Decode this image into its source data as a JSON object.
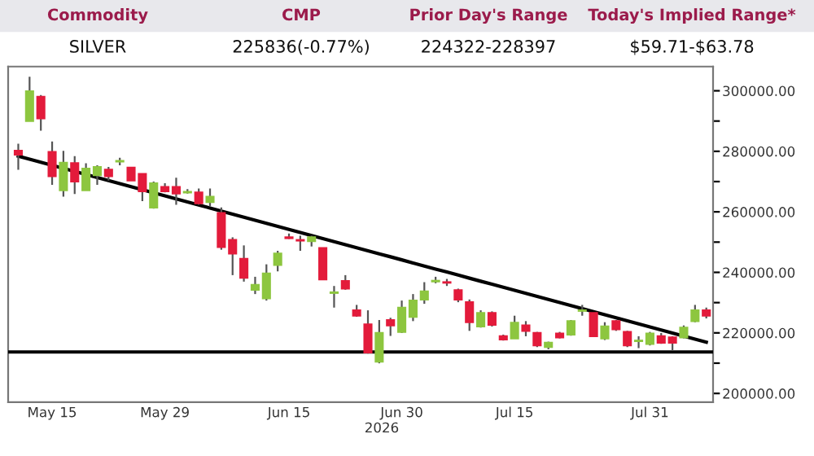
{
  "chart_data": {
    "type": "candlestick",
    "annotations": [
      "Commodity",
      "CMP",
      "Prior Day's Range",
      "Today's Implied Range*",
      "SILVER",
      "225836(-0.77%)",
      "224322-228397",
      "$59.71-$63.78"
    ],
    "xlabel": "2026",
    "categories": [
      null,
      null,
      null,
      "May 15",
      null,
      null,
      null,
      null,
      null,
      null,
      null,
      null,
      null,
      "May 29",
      null,
      null,
      null,
      null,
      null,
      null,
      null,
      null,
      null,
      null,
      "Jun 15",
      null,
      null,
      null,
      null,
      null,
      null,
      null,
      null,
      null,
      "Jun 30",
      null,
      null,
      null,
      null,
      null,
      null,
      null,
      null,
      null,
      "Jul 15",
      null,
      null,
      null,
      null,
      null,
      null,
      null,
      null,
      null,
      null,
      null,
      "Jul 31",
      null,
      null,
      null,
      null,
      null
    ],
    "ohlc": [
      [
        280180,
        282500,
        273930,
        278930
      ],
      [
        290010,
        304660,
        290010,
        299840
      ],
      [
        298050,
        298590,
        286790,
        290900
      ],
      [
        279820,
        283220,
        268920,
        271780
      ],
      [
        267140,
        280180,
        264990,
        276250
      ],
      [
        276070,
        278390,
        265890,
        270000
      ],
      [
        267140,
        276070,
        267140,
        274290
      ],
      [
        272140,
        275360,
        268920,
        274820
      ],
      [
        273930,
        274820,
        270350,
        271780
      ],
      [
        276600,
        277860,
        275360,
        276800
      ],
      [
        274640,
        274640,
        270350,
        270350
      ],
      [
        272500,
        272500,
        263560,
        266780
      ],
      [
        261420,
        270000,
        261060,
        269460
      ],
      [
        268210,
        269460,
        266420,
        266780
      ],
      [
        268210,
        271250,
        262310,
        266060
      ],
      [
        266420,
        267500,
        266060,
        266600
      ],
      [
        266420,
        267680,
        262310,
        262850
      ],
      [
        263200,
        267680,
        261780,
        264990
      ],
      [
        259630,
        261420,
        247480,
        248380
      ],
      [
        250700,
        251590,
        239080,
        246230
      ],
      [
        244440,
        248910,
        236940,
        238190
      ],
      [
        234260,
        238540,
        232830,
        235860
      ],
      [
        231400,
        242660,
        230680,
        239620
      ],
      [
        242470,
        247120,
        240330,
        246230
      ],
      [
        251590,
        252840,
        251050,
        251300
      ],
      [
        250700,
        252130,
        247120,
        250500
      ],
      [
        250340,
        252130,
        248550,
        251590
      ],
      [
        248010,
        248010,
        237650,
        237650
      ],
      [
        233190,
        235500,
        228360,
        233400
      ],
      [
        237120,
        239080,
        234260,
        234620
      ],
      [
        227460,
        229250,
        225320,
        225670
      ],
      [
        222820,
        227460,
        213170,
        213530
      ],
      [
        210490,
        224250,
        209950,
        219960
      ],
      [
        224250,
        225000,
        219000,
        222460
      ],
      [
        220320,
        230680,
        219960,
        228360
      ],
      [
        225320,
        232830,
        223890,
        230680
      ],
      [
        231040,
        236760,
        229610,
        233730
      ],
      [
        237000,
        238540,
        236400,
        237230
      ],
      [
        236760,
        237830,
        235500,
        236580
      ],
      [
        234080,
        234620,
        230140,
        231040
      ],
      [
        230140,
        231040,
        220670,
        223530
      ],
      [
        222110,
        227460,
        221750,
        226580
      ],
      [
        226580,
        227110,
        222110,
        222640
      ],
      [
        218890,
        219430,
        217460,
        217820
      ],
      [
        218180,
        225680,
        218180,
        223360
      ],
      [
        222460,
        223890,
        218890,
        220670
      ],
      [
        219960,
        220320,
        215310,
        215850
      ],
      [
        215310,
        217100,
        214600,
        216740
      ],
      [
        219780,
        220320,
        218180,
        218530
      ],
      [
        219430,
        224250,
        219070,
        223890
      ],
      [
        227280,
        229250,
        225680,
        227460
      ],
      [
        226580,
        226580,
        218890,
        218890
      ],
      [
        218180,
        223530,
        217640,
        222110
      ],
      [
        223890,
        224250,
        220670,
        221210
      ],
      [
        220320,
        220670,
        215310,
        215850
      ],
      [
        217280,
        218890,
        214960,
        217460
      ],
      [
        216380,
        220320,
        215850,
        219780
      ],
      [
        218890,
        219960,
        216380,
        216740
      ],
      [
        218530,
        218890,
        214060,
        216740
      ],
      [
        218530,
        222460,
        218180,
        221750
      ],
      [
        223890,
        229250,
        223530,
        227460
      ],
      [
        227460,
        228360,
        224780,
        225670
      ]
    ],
    "colors": [
      "#e31b3b",
      "#8dc63f",
      "#e31b3b",
      "#e31b3b",
      "#8dc63f",
      "#e31b3b",
      "#8dc63f",
      "#8dc63f",
      "#e31b3b",
      "#8dc63f",
      "#e31b3b",
      "#e31b3b",
      "#8dc63f",
      "#e31b3b",
      "#e31b3b",
      "#8dc63f",
      "#e31b3b",
      "#8dc63f",
      "#e31b3b",
      "#e31b3b",
      "#e31b3b",
      "#8dc63f",
      "#8dc63f",
      "#8dc63f",
      "#e31b3b",
      "#e31b3b",
      "#8dc63f",
      "#e31b3b",
      "#8dc63f",
      "#e31b3b",
      "#e31b3b",
      "#e31b3b",
      "#8dc63f",
      "#e31b3b",
      "#8dc63f",
      "#8dc63f",
      "#8dc63f",
      "#8dc63f",
      "#e31b3b",
      "#e31b3b",
      "#e31b3b",
      "#8dc63f",
      "#e31b3b",
      "#e31b3b",
      "#8dc63f",
      "#e31b3b",
      "#e31b3b",
      "#8dc63f",
      "#e31b3b",
      "#8dc63f",
      "#8dc63f",
      "#e31b3b",
      "#8dc63f",
      "#e31b3b",
      "#e31b3b",
      "#8dc63f",
      "#8dc63f",
      "#e31b3b",
      "#e31b3b",
      "#8dc63f",
      "#8dc63f",
      "#e31b3b"
    ],
    "series": [
      {
        "type": "line",
        "color": "#000000",
        "values": [
          278390,
          277380,
          276380,
          275370,
          274360,
          273350,
          272350,
          271340,
          270330,
          269320,
          268310,
          267310,
          266300,
          265290,
          264280,
          263280,
          262270,
          261260,
          260250,
          259240,
          258240,
          257230,
          256220,
          255210,
          254210,
          253200,
          252190,
          251180,
          250170,
          249170,
          248160,
          247150,
          246140,
          245140,
          244130,
          243120,
          242110,
          241100,
          240100,
          239090,
          238080,
          237070,
          236070,
          235060,
          234050,
          233040,
          232030,
          231030,
          230020,
          229010,
          228000,
          227000,
          225990,
          224980,
          223970,
          222960,
          221960,
          220950,
          219940,
          218930,
          217930,
          216920
        ]
      }
    ],
    "ref_lines": [
      {
        "axis": "y",
        "value": 213700,
        "color": "#000000"
      }
    ],
    "ylim": [
      197100,
      308000
    ],
    "yticks": [
      {
        "value": 200000,
        "label": "200000.00"
      },
      {
        "value": 210000,
        "label": null
      },
      {
        "value": 220000,
        "label": "220000.00"
      },
      {
        "value": 230000,
        "label": null
      },
      {
        "value": 240000,
        "label": "240000.00"
      },
      {
        "value": 250000,
        "label": null
      },
      {
        "value": 260000,
        "label": "260000.00"
      },
      {
        "value": 270000,
        "label": null
      },
      {
        "value": 280000,
        "label": "280000.00"
      },
      {
        "value": 290000,
        "label": null
      },
      {
        "value": 300000,
        "label": "300000.00"
      }
    ],
    "grid": false
  }
}
